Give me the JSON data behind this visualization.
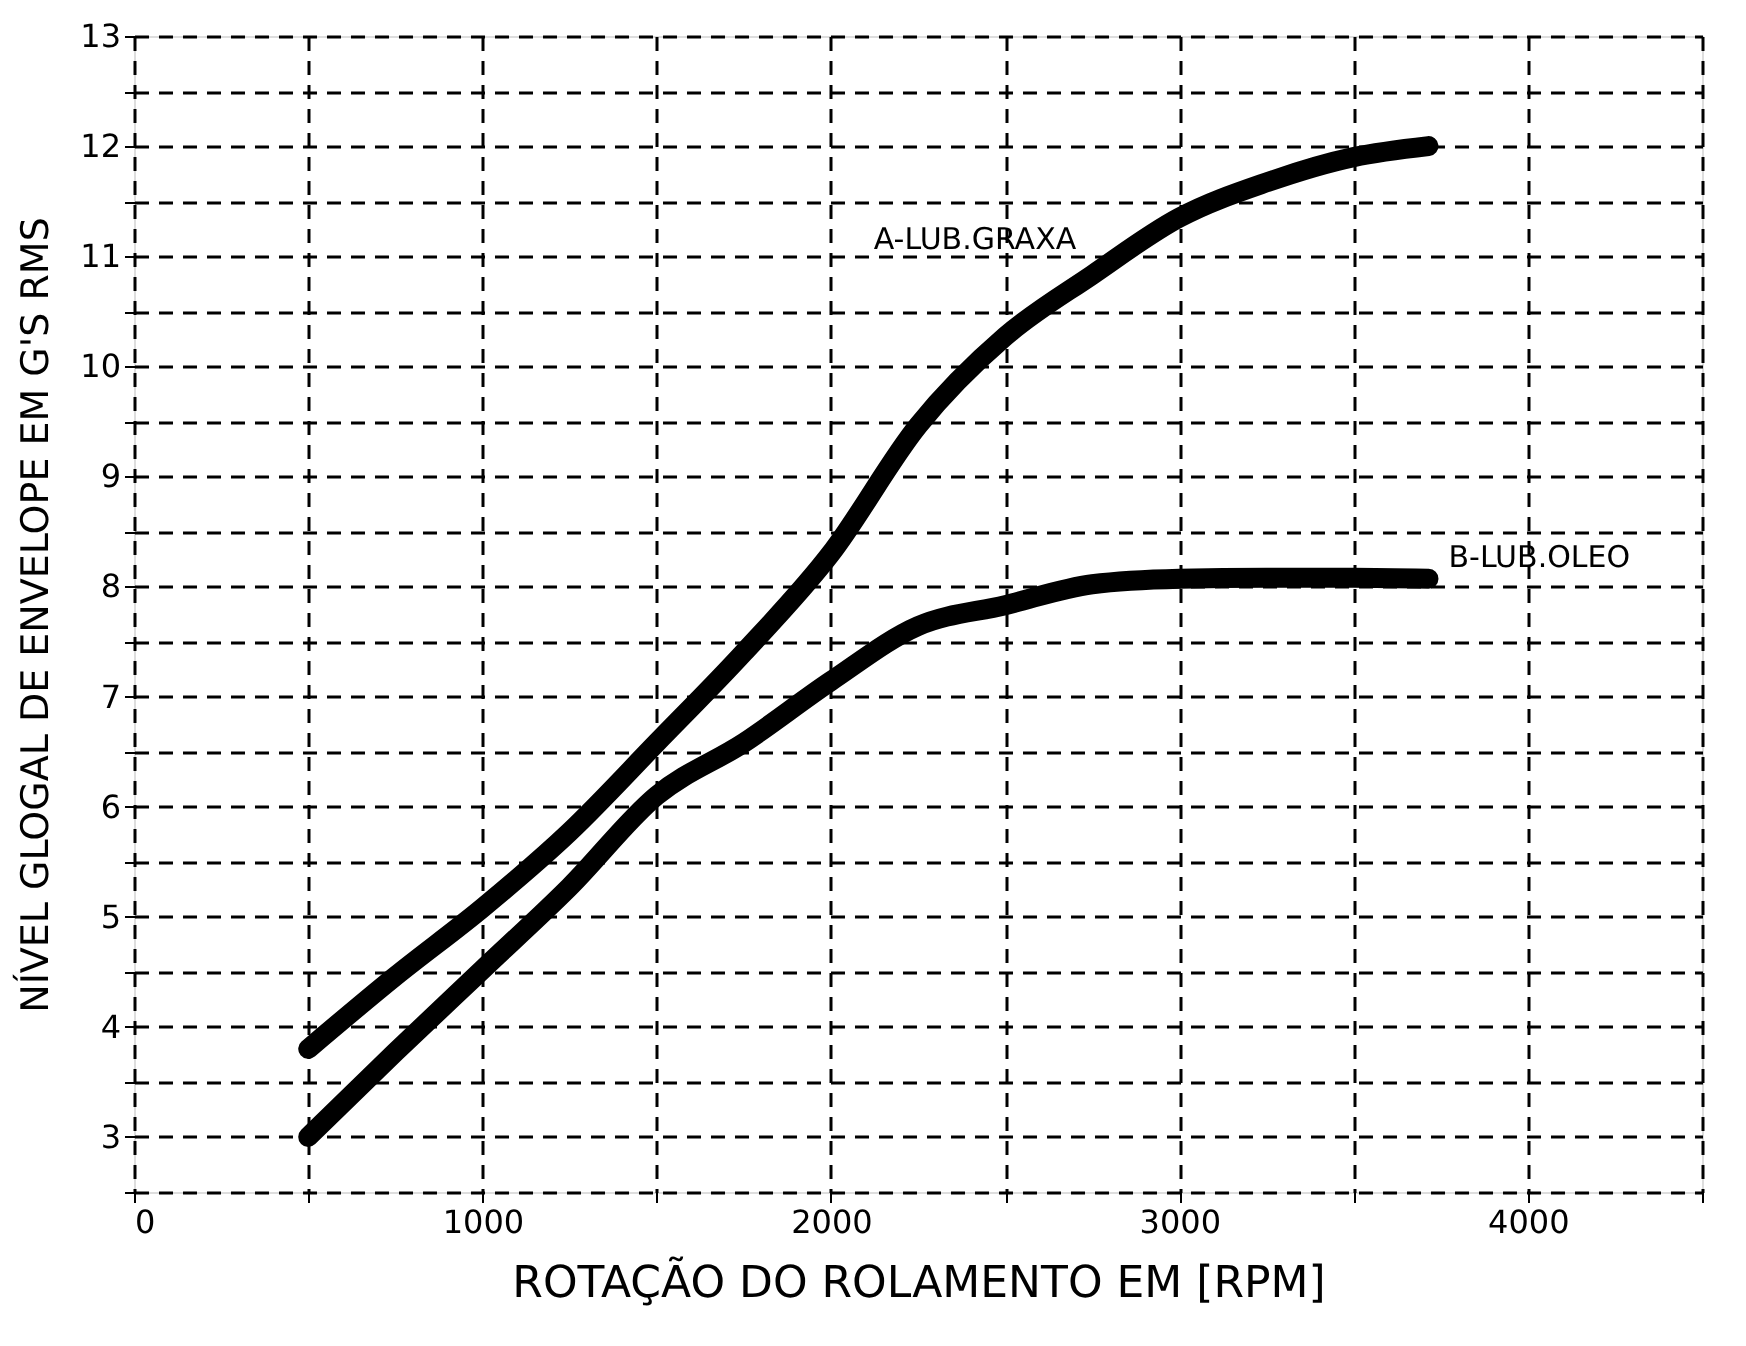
{
  "chart_data": {
    "type": "line",
    "xlabel": "ROTAÇÃO DO ROLAMENTO EM [RPM]",
    "ylabel": "NÍVEL GLOGAL DE ENVELOPE EM G'S RMS",
    "series": [
      {
        "name": "A-LUB.GRAXA",
        "color": "#000000",
        "x": [
          500,
          750,
          1000,
          1250,
          1500,
          1750,
          2000,
          2250,
          2500,
          2750,
          3000,
          3250,
          3500,
          3715
        ],
        "values": [
          3.8,
          4.46,
          5.08,
          5.77,
          6.58,
          7.4,
          8.3,
          9.46,
          10.27,
          10.83,
          11.35,
          11.67,
          11.9,
          12.0
        ]
      },
      {
        "name": "B-LUB.OLEO",
        "color": "#000000",
        "x": [
          500,
          750,
          1000,
          1250,
          1500,
          1750,
          2000,
          2250,
          2500,
          2750,
          3000,
          3250,
          3500,
          3715
        ],
        "values": [
          3.0,
          3.77,
          4.52,
          5.27,
          6.1,
          6.58,
          7.14,
          7.64,
          7.83,
          8.02,
          8.07,
          8.08,
          8.08,
          8.07
        ]
      }
    ],
    "xlim": [
      0,
      4500
    ],
    "xticks": [
      0,
      {
        "value": 500,
        "label": null
      },
      1000,
      {
        "value": 1500,
        "label": null
      },
      2000,
      {
        "value": 2500,
        "label": null
      },
      3000,
      {
        "value": 3500,
        "label": null
      },
      4000,
      {
        "value": 4500,
        "label": null
      }
    ],
    "ylim": [
      2.5,
      13
    ],
    "yticks": [
      {
        "value": 2.5,
        "label": null
      },
      3,
      {
        "value": 3.5,
        "label": null
      },
      4,
      {
        "value": 4.5,
        "label": null
      },
      5,
      {
        "value": 5.5,
        "label": null
      },
      6,
      {
        "value": 6.5,
        "label": null
      },
      7,
      {
        "value": 7.5,
        "label": null
      },
      8,
      {
        "value": 8.5,
        "label": null
      },
      9,
      {
        "value": 9.5,
        "label": null
      },
      10,
      {
        "value": 10.5,
        "label": null
      },
      11,
      {
        "value": 11.5,
        "label": null
      },
      12,
      {
        "value": 12.5,
        "label": null
      },
      13
    ],
    "grid": true,
    "line_style": "solid"
  }
}
